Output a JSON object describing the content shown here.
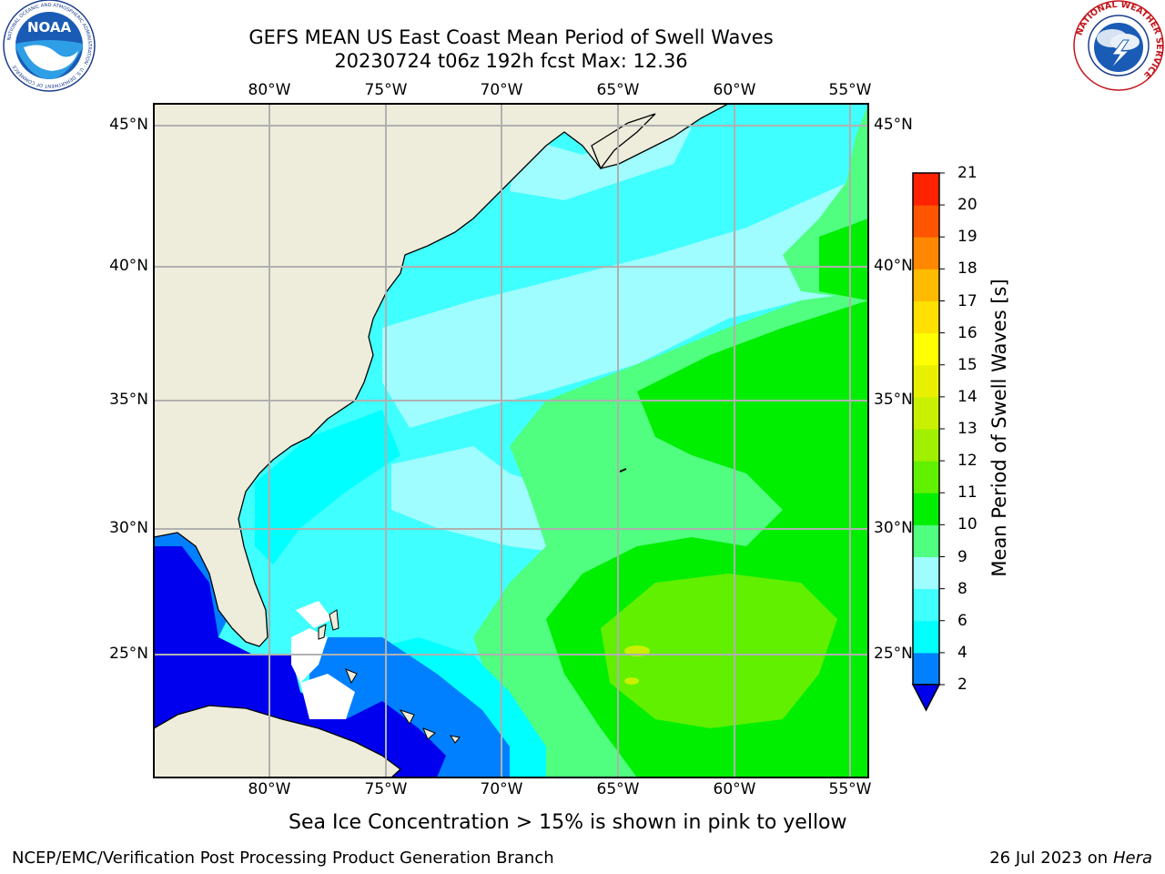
{
  "header": {
    "title_line1": "GEFS MEAN US East Coast Mean Period of Swell Waves",
    "title_line2": "20230724 t06z 192h fcst   Max: 12.36"
  },
  "logos": {
    "left": "noaa-logo",
    "right": "nws-logo",
    "noaa_text": "NOAA",
    "noaa_ring_text": "NATIONAL OCEANIC AND ATMOSPHERIC ADMINISTRATION · U.S. DEPARTMENT OF COMMERCE",
    "nws_ring_text": "NATIONAL WEATHER SERVICE"
  },
  "map": {
    "lon_labels": [
      "80°W",
      "75°W",
      "70°W",
      "65°W",
      "60°W",
      "55°W"
    ],
    "lat_labels": [
      "45°N",
      "40°N",
      "35°N",
      "30°N",
      "25°N"
    ],
    "land_color": "#eeeddc",
    "grid_color": "#b0b0b0"
  },
  "colorbar": {
    "label": "Mean Period of Swell Waves [s]",
    "ticks": [
      "2",
      "4",
      "6",
      "8",
      "9",
      "10",
      "11",
      "12",
      "13",
      "14",
      "15",
      "16",
      "17",
      "18",
      "19",
      "20",
      "21"
    ],
    "colors": [
      "#0000ee",
      "#0080ff",
      "#00ffff",
      "#40ffff",
      "#9ffcff",
      "#50ff80",
      "#00ee00",
      "#60f000",
      "#a0f000",
      "#c8f000",
      "#e8f000",
      "#ffff00",
      "#ffe000",
      "#ffbb00",
      "#ff8800",
      "#ff5500",
      "#ff2200",
      "#ff0000"
    ]
  },
  "notes": {
    "sea_ice": "Sea Ice Concentration > 15% is shown in pink to yellow"
  },
  "footer": {
    "left": "NCEP/EMC/Verification Post Processing Product Generation Branch",
    "date": "26 Jul 2023 on ",
    "machine": "Hera"
  }
}
